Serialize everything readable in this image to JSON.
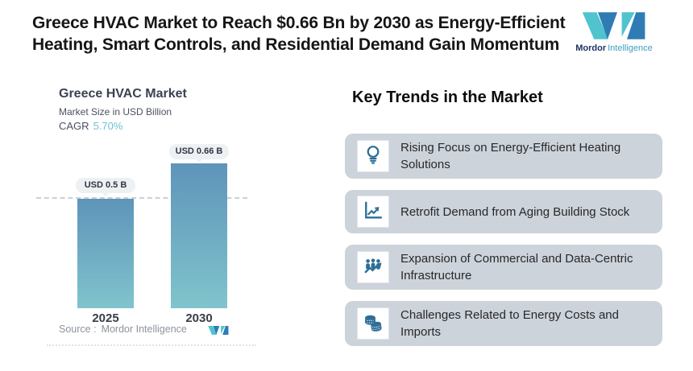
{
  "header": {
    "title_line1": "Greece HVAC Market to Reach $0.66 Bn by 2030 as Energy-Efficient",
    "title_line2": "Heating, Smart Controls, and Residential Demand Gain Momentum",
    "logo": {
      "brand_bold": "Mordor",
      "brand_light": "Intelligence"
    }
  },
  "chart": {
    "title": "Greece HVAC Market",
    "subtitle": "Market Size in USD Billion",
    "cagr_label": "CAGR",
    "cagr_value": "5.70%",
    "source_label": "Source :",
    "source_value": "Mordor Intelligence"
  },
  "chart_data": {
    "type": "bar",
    "title": "Greece HVAC Market",
    "ylabel": "Market Size in USD Billion",
    "cagr": "5.70%",
    "categories": [
      "2025",
      "2030"
    ],
    "values": [
      0.5,
      0.66
    ],
    "bar_labels": [
      "USD 0.5 B",
      "USD 0.66 B"
    ],
    "reference_line": 0.5,
    "ylim": [
      0,
      0.7
    ],
    "grid": "off",
    "colors": {
      "bar_top": "#5e94ba",
      "bar_bottom": "#80c4cc",
      "reference_dash": "#c6d0d7"
    }
  },
  "trends": {
    "heading": "Key Trends in the Market",
    "items": [
      {
        "icon": "lightbulb-icon",
        "label": "Rising Focus on Energy-Efficient Heating Solutions"
      },
      {
        "icon": "line-chart-icon",
        "label": "Retrofit Demand from Aging Building Stock"
      },
      {
        "icon": "people-growth-icon",
        "label": "Expansion of Commercial and Data-Centric Infrastructure"
      },
      {
        "icon": "coins-icon",
        "label": "Challenges Related to Energy Costs and Imports"
      }
    ]
  },
  "colors": {
    "accent_teal": "#4fc4cf",
    "accent_blue": "#2f7cb5",
    "cagr_highlight": "#6fc0d6",
    "card_bg": "#cdd3da",
    "icon_blue": "#2d6e97"
  }
}
